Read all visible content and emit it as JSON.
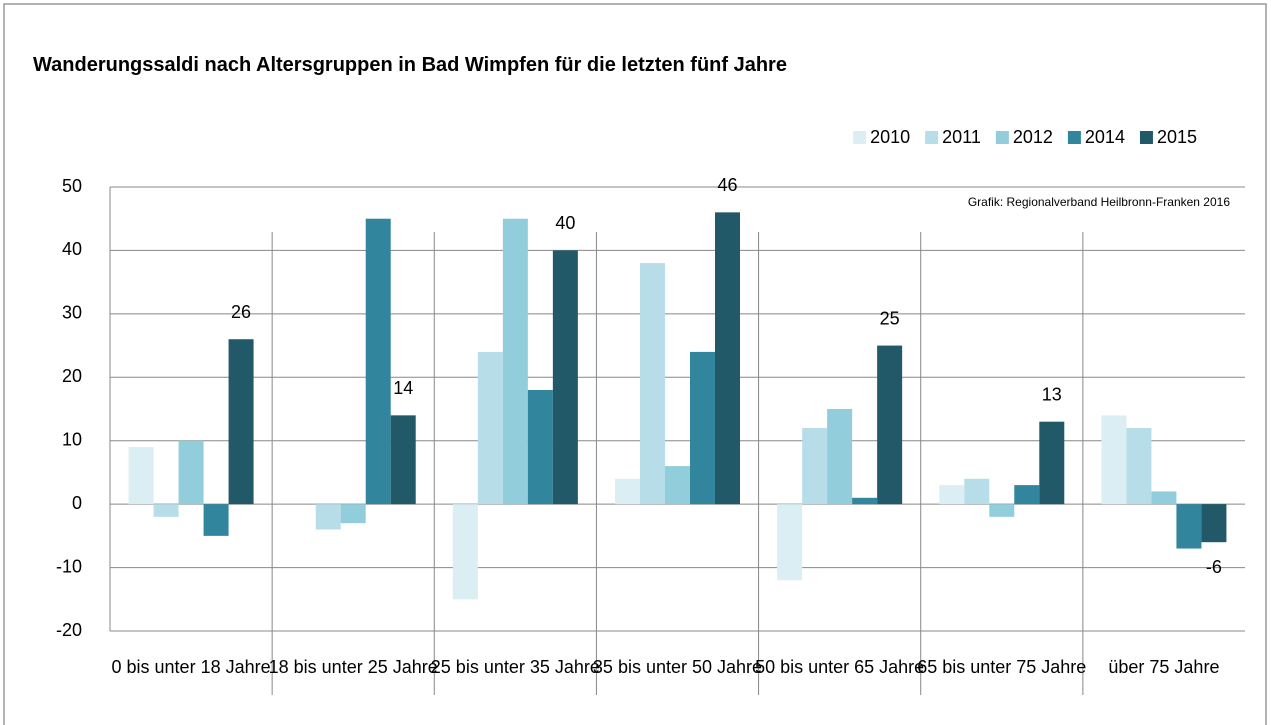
{
  "chart_data": {
    "type": "bar",
    "title": "Wanderungssaldi nach Altersgruppen in Bad Wimpfen für die letzten fünf Jahre",
    "annotation": "Grafik: Regionalverband Heilbronn-Franken 2016",
    "categories": [
      "0 bis unter 18 Jahre",
      "18 bis unter 25 Jahre",
      "25 bis unter 35 Jahre",
      "35 bis unter 50 Jahre",
      "50 bis unter 65 Jahre",
      "65 bis unter 75 Jahre",
      "über 75 Jahre"
    ],
    "series": [
      {
        "name": "2010",
        "color": "#dbeef4",
        "values": [
          9,
          0,
          -15,
          4,
          -12,
          3,
          14
        ]
      },
      {
        "name": "2011",
        "color": "#b7dde8",
        "values": [
          -2,
          -4,
          24,
          38,
          12,
          4,
          12
        ]
      },
      {
        "name": "2012",
        "color": "#92cddc",
        "values": [
          10,
          -3,
          45,
          6,
          15,
          -2,
          2
        ]
      },
      {
        "name": "2014",
        "color": "#31859c",
        "values": [
          -5,
          45,
          18,
          24,
          1,
          3,
          -7
        ]
      },
      {
        "name": "2015",
        "color": "#215968",
        "values": [
          26,
          14,
          40,
          46,
          25,
          13,
          -6
        ],
        "data_labels": true
      }
    ],
    "ylim": [
      -20,
      50
    ],
    "yticks": [
      -20,
      -10,
      0,
      10,
      20,
      30,
      40,
      50
    ],
    "grid": true,
    "legend": "top-right"
  }
}
